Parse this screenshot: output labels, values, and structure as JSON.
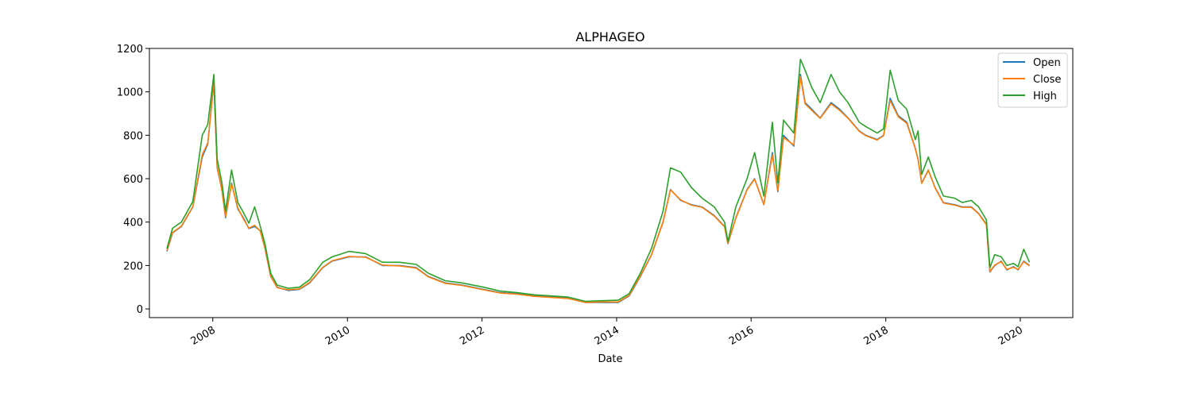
{
  "chart_data": {
    "type": "line",
    "title": "ALPHAGEO",
    "xlabel": "Date",
    "ylabel": "",
    "xlim": [
      "2007-01-22",
      "2020-10-12"
    ],
    "ylim": [
      -40,
      1200
    ],
    "x_ticks": [
      "2008",
      "2010",
      "2012",
      "2014",
      "2016",
      "2018",
      "2020"
    ],
    "y_ticks": [
      0,
      200,
      400,
      600,
      800,
      1000,
      1200
    ],
    "grid": false,
    "legend_position": "top-right",
    "series": [
      {
        "name": "Open",
        "color": "#1f77b4",
        "x": [
          "2007-04-27",
          "2007-05-28",
          "2007-07-15",
          "2007-09-15",
          "2007-11-05",
          "2007-12-05",
          "2008-01-07",
          "2008-01-25",
          "2008-02-20",
          "2008-03-10",
          "2008-04-12",
          "2008-05-16",
          "2008-06-15",
          "2008-07-15",
          "2008-08-15",
          "2008-09-15",
          "2008-10-10",
          "2008-11-10",
          "2008-12-15",
          "2009-02-15",
          "2009-04-15",
          "2009-06-10",
          "2009-08-20",
          "2009-10-10",
          "2010-01-10",
          "2010-04-10",
          "2010-07-10",
          "2010-10-10",
          "2011-01-10",
          "2011-03-15",
          "2011-06-15",
          "2011-09-15",
          "2012-01-10",
          "2012-04-10",
          "2012-07-10",
          "2012-10-10",
          "2013-01-10",
          "2013-04-10",
          "2013-07-15",
          "2013-10-10",
          "2014-01-10",
          "2014-03-10",
          "2014-05-10",
          "2014-07-10",
          "2014-09-10",
          "2014-10-20",
          "2014-12-15",
          "2015-02-10",
          "2015-04-10",
          "2015-06-15",
          "2015-08-10",
          "2015-08-28",
          "2015-10-10",
          "2015-12-10",
          "2016-01-20",
          "2016-03-10",
          "2016-04-25",
          "2016-05-25",
          "2016-06-25",
          "2016-08-20",
          "2016-09-25",
          "2016-10-20",
          "2016-11-25",
          "2017-01-10",
          "2017-03-10",
          "2017-04-25",
          "2017-06-10",
          "2017-08-10",
          "2017-09-15",
          "2017-11-15",
          "2017-12-20",
          "2018-01-25",
          "2018-03-10",
          "2018-04-25",
          "2018-06-10",
          "2018-06-25",
          "2018-07-15",
          "2018-08-20",
          "2018-09-25",
          "2018-11-10",
          "2019-01-10",
          "2019-02-20",
          "2019-04-10",
          "2019-05-20",
          "2019-07-01",
          "2019-07-20",
          "2019-08-15",
          "2019-09-20",
          "2019-10-20",
          "2019-11-25",
          "2019-12-20",
          "2020-01-20",
          "2020-02-20"
        ],
        "values": [
          265,
          350,
          380,
          470,
          700,
          760,
          1050,
          650,
          550,
          420,
          580,
          460,
          420,
          370,
          380,
          360,
          280,
          150,
          100,
          85,
          90,
          120,
          190,
          220,
          240,
          240,
          200,
          200,
          190,
          150,
          120,
          110,
          90,
          75,
          70,
          60,
          55,
          50,
          30,
          30,
          30,
          60,
          150,
          250,
          400,
          550,
          500,
          480,
          470,
          430,
          380,
          300,
          420,
          550,
          600,
          480,
          720,
          540,
          800,
          750,
          1080,
          950,
          920,
          880,
          950,
          920,
          880,
          820,
          800,
          780,
          800,
          970,
          890,
          860,
          740,
          690,
          580,
          640,
          560,
          490,
          480,
          470,
          470,
          440,
          390,
          170,
          200,
          220,
          180,
          195,
          180,
          220,
          200
        ]
      },
      {
        "name": "Close",
        "color": "#ff7f0e",
        "x": [
          "2007-04-27",
          "2007-05-28",
          "2007-07-15",
          "2007-09-15",
          "2007-11-05",
          "2007-12-05",
          "2008-01-07",
          "2008-01-25",
          "2008-02-20",
          "2008-03-10",
          "2008-04-12",
          "2008-05-16",
          "2008-06-15",
          "2008-07-15",
          "2008-08-15",
          "2008-09-15",
          "2008-10-10",
          "2008-11-10",
          "2008-12-15",
          "2009-02-15",
          "2009-04-15",
          "2009-06-10",
          "2009-08-20",
          "2009-10-10",
          "2010-01-10",
          "2010-04-10",
          "2010-07-10",
          "2010-10-10",
          "2011-01-10",
          "2011-03-15",
          "2011-06-15",
          "2011-09-15",
          "2012-01-10",
          "2012-04-10",
          "2012-07-10",
          "2012-10-10",
          "2013-01-10",
          "2013-04-10",
          "2013-07-15",
          "2013-10-10",
          "2014-01-10",
          "2014-03-10",
          "2014-05-10",
          "2014-07-10",
          "2014-09-10",
          "2014-10-20",
          "2014-12-15",
          "2015-02-10",
          "2015-04-10",
          "2015-06-15",
          "2015-08-10",
          "2015-08-28",
          "2015-10-10",
          "2015-12-10",
          "2016-01-20",
          "2016-03-10",
          "2016-04-25",
          "2016-05-25",
          "2016-06-25",
          "2016-08-20",
          "2016-09-25",
          "2016-10-20",
          "2016-11-25",
          "2017-01-10",
          "2017-03-10",
          "2017-04-25",
          "2017-06-10",
          "2017-08-10",
          "2017-09-15",
          "2017-11-15",
          "2017-12-20",
          "2018-01-25",
          "2018-03-10",
          "2018-04-25",
          "2018-06-10",
          "2018-06-25",
          "2018-07-15",
          "2018-08-20",
          "2018-09-25",
          "2018-11-10",
          "2019-01-10",
          "2019-02-20",
          "2019-04-10",
          "2019-05-20",
          "2019-07-01",
          "2019-07-20",
          "2019-08-15",
          "2019-09-20",
          "2019-10-20",
          "2019-11-25",
          "2019-12-20",
          "2020-01-20",
          "2020-02-20"
        ],
        "values": [
          268,
          352,
          382,
          472,
          710,
          765,
          1040,
          655,
          545,
          425,
          575,
          465,
          415,
          372,
          385,
          358,
          282,
          152,
          98,
          88,
          92,
          122,
          192,
          222,
          242,
          238,
          202,
          198,
          188,
          148,
          118,
          108,
          88,
          73,
          68,
          58,
          53,
          48,
          30,
          32,
          32,
          62,
          152,
          252,
          402,
          548,
          502,
          478,
          468,
          428,
          378,
          302,
          418,
          548,
          598,
          482,
          710,
          545,
          790,
          755,
          1070,
          945,
          915,
          878,
          945,
          915,
          878,
          818,
          798,
          778,
          798,
          960,
          885,
          855,
          738,
          688,
          578,
          638,
          558,
          488,
          478,
          468,
          468,
          438,
          388,
          172,
          202,
          218,
          182,
          192,
          182,
          218,
          198
        ]
      },
      {
        "name": "High",
        "color": "#2ca02c",
        "x": [
          "2007-04-27",
          "2007-05-28",
          "2007-07-15",
          "2007-09-15",
          "2007-11-05",
          "2007-12-05",
          "2008-01-07",
          "2008-01-25",
          "2008-02-20",
          "2008-03-10",
          "2008-04-12",
          "2008-05-16",
          "2008-06-15",
          "2008-07-15",
          "2008-08-15",
          "2008-09-15",
          "2008-10-10",
          "2008-11-10",
          "2008-12-15",
          "2009-02-15",
          "2009-04-15",
          "2009-06-10",
          "2009-08-20",
          "2009-10-10",
          "2010-01-10",
          "2010-04-10",
          "2010-07-10",
          "2010-10-10",
          "2011-01-10",
          "2011-03-15",
          "2011-06-15",
          "2011-09-15",
          "2012-01-10",
          "2012-04-10",
          "2012-07-10",
          "2012-10-10",
          "2013-01-10",
          "2013-04-10",
          "2013-07-15",
          "2013-10-10",
          "2014-01-10",
          "2014-03-10",
          "2014-05-10",
          "2014-07-10",
          "2014-09-10",
          "2014-10-20",
          "2014-12-15",
          "2015-02-10",
          "2015-04-10",
          "2015-06-15",
          "2015-08-10",
          "2015-08-28",
          "2015-10-10",
          "2015-12-10",
          "2016-01-20",
          "2016-03-10",
          "2016-04-25",
          "2016-05-25",
          "2016-06-25",
          "2016-08-20",
          "2016-09-25",
          "2016-10-20",
          "2016-11-25",
          "2017-01-10",
          "2017-03-10",
          "2017-04-25",
          "2017-06-10",
          "2017-08-10",
          "2017-09-15",
          "2017-11-15",
          "2017-12-20",
          "2018-01-25",
          "2018-03-10",
          "2018-04-25",
          "2018-06-10",
          "2018-06-25",
          "2018-07-15",
          "2018-08-20",
          "2018-09-25",
          "2018-11-10",
          "2019-01-10",
          "2019-02-20",
          "2019-04-10",
          "2019-05-20",
          "2019-07-01",
          "2019-07-20",
          "2019-08-15",
          "2019-09-20",
          "2019-10-20",
          "2019-11-25",
          "2019-12-20",
          "2020-01-20",
          "2020-02-20"
        ],
        "values": [
          278,
          372,
          400,
          495,
          800,
          850,
          1080,
          690,
          580,
          450,
          640,
          490,
          445,
          395,
          470,
          380,
          300,
          165,
          110,
          95,
          100,
          135,
          215,
          240,
          265,
          255,
          215,
          215,
          205,
          165,
          130,
          120,
          100,
          82,
          75,
          65,
          60,
          55,
          35,
          38,
          40,
          70,
          165,
          280,
          450,
          650,
          630,
          560,
          510,
          470,
          400,
          310,
          470,
          600,
          720,
          520,
          860,
          580,
          870,
          810,
          1150,
          1100,
          1020,
          950,
          1080,
          1000,
          950,
          860,
          840,
          810,
          830,
          1100,
          960,
          920,
          780,
          820,
          620,
          700,
          610,
          520,
          510,
          490,
          500,
          470,
          410,
          190,
          250,
          240,
          200,
          210,
          195,
          275,
          215
        ]
      }
    ]
  }
}
